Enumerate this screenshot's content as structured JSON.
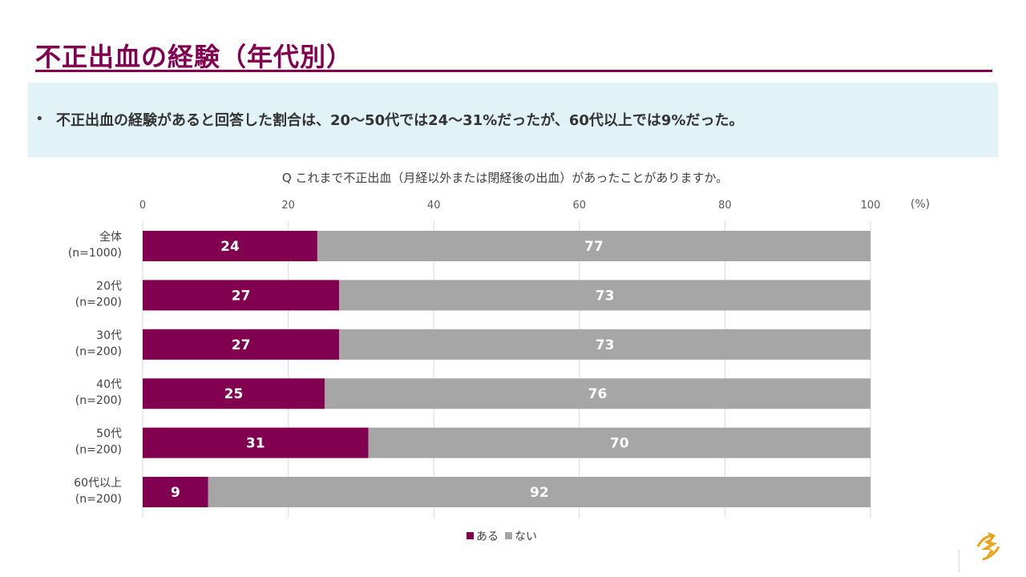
{
  "page": {
    "title": "不正出血の経験（年代別）",
    "summary_bullet": "•",
    "summary": "不正出血の経験があると回答した割合は、20〜50代では24〜31%だったが、60代以上では9%だった。"
  },
  "colors": {
    "accent": "#820050",
    "series_yes": "#820050",
    "series_no": "#a6a6a6",
    "summary_bg": "#e2f3f7"
  },
  "logo": {
    "icon": "company-logo-icon",
    "color": "#e8a317"
  },
  "chart_data": {
    "type": "bar",
    "orientation": "horizontal",
    "stacked": true,
    "title": "Q これまで不正出血（月経以外または閉経後の出血）があったことがありますか。",
    "unit_label": "(%)",
    "xlim": [
      0,
      100
    ],
    "xticks": [
      0,
      20,
      40,
      60,
      80,
      100
    ],
    "grid": true,
    "legend_position": "bottom",
    "categories": [
      [
        "全体",
        "(n=1000)"
      ],
      [
        "20代",
        "(n=200)"
      ],
      [
        "30代",
        "(n=200)"
      ],
      [
        "40代",
        "(n=200)"
      ],
      [
        "50代",
        "(n=200)"
      ],
      [
        "60代以上",
        "(n=200)"
      ]
    ],
    "series": [
      {
        "name": "ある",
        "color": "#820050",
        "values": [
          24,
          27,
          27,
          25,
          31,
          9
        ]
      },
      {
        "name": "ない",
        "color": "#a6a6a6",
        "values": [
          77,
          73,
          73,
          76,
          70,
          92
        ]
      }
    ]
  }
}
